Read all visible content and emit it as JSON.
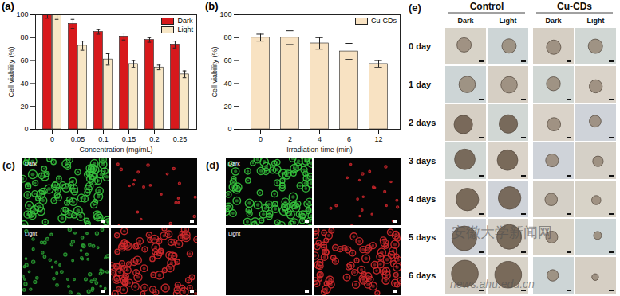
{
  "chart_data": [
    {
      "type": "bar",
      "title": "(a)",
      "categories": [
        "0",
        "0.05",
        "0.1",
        "0.15",
        "0.2",
        "0.25"
      ],
      "series": [
        {
          "name": "Dark",
          "color": "#d7191c",
          "values": [
            100,
            92,
            85,
            81,
            78,
            74
          ],
          "errors": [
            3,
            4,
            2,
            3,
            2,
            3
          ]
        },
        {
          "name": "Light",
          "color": "#f8e7c6",
          "values": [
            100,
            73,
            61,
            57,
            54,
            48
          ],
          "errors": [
            4,
            4,
            5,
            3,
            2,
            3
          ]
        }
      ],
      "x_label": "Concentration (mg/mL)",
      "y_label": "Cell viability (%)",
      "ylim": [
        0,
        100
      ],
      "yticks": [
        0,
        20,
        40,
        60,
        80,
        100
      ],
      "legend": "upper right"
    },
    {
      "type": "bar",
      "title": "(b)",
      "categories": [
        "0",
        "2",
        "4",
        "6",
        "12"
      ],
      "series": [
        {
          "name": "Cu-CDs",
          "color": "#f8e2c2",
          "values": [
            80,
            80,
            75,
            68,
            57
          ],
          "errors": [
            3,
            6,
            5,
            7,
            3
          ]
        }
      ],
      "x_label": "Irradiation time (min)",
      "y_label": "Cell viability (%)",
      "ylim": [
        0,
        100
      ],
      "yticks": [
        0,
        20,
        40,
        60,
        80,
        100
      ],
      "legend": "upper right"
    }
  ],
  "panels": [
    {
      "label": "(c)",
      "labels": [
        "Dark",
        "Light"
      ]
    },
    {
      "label": "(d)",
      "labels": [
        "Dark",
        "Light"
      ]
    },
    {
      "label": "(e)",
      "groups": [
        "Control",
        "Cu-CDs"
      ],
      "columns": [
        "Dark",
        "Light",
        "Dark",
        "Light"
      ],
      "rows": [
        "0 day",
        "1 day",
        "2 days",
        "3 days",
        "4 days",
        "5 days",
        "6 days"
      ]
    }
  ],
  "watermark": [
    "安徽大学新闻网",
    "news.ahu.edu.cn"
  ]
}
